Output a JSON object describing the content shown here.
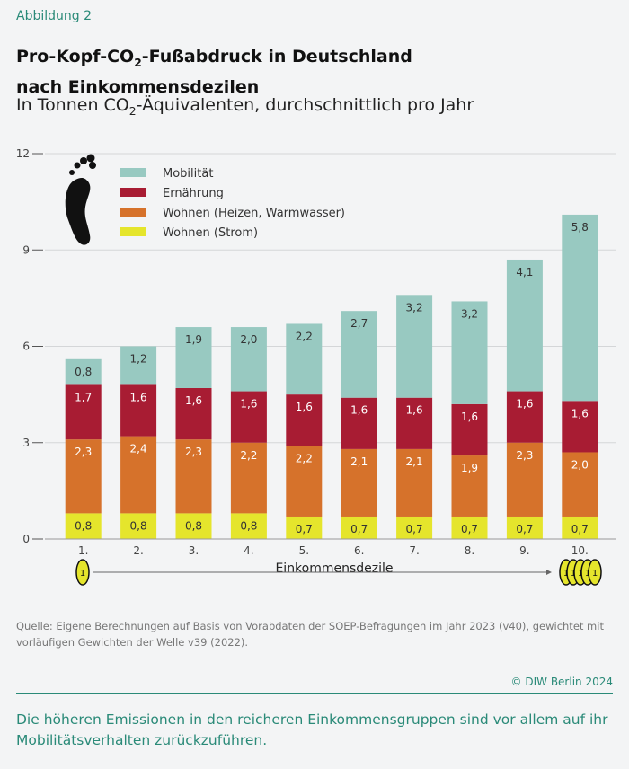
{
  "figure_label": "Abbildung 2",
  "title_line1": "Pro-Kopf-CO",
  "title_sub": "2",
  "title_line1_rest": "-Fußabdruck in Deutschland",
  "title_line2": "nach Einkommensdezilen",
  "subtitle_pre": "In Tonnen CO",
  "subtitle_sub": "2",
  "subtitle_post": "-Äquivalenten, durchschnittlich pro Jahr",
  "source": "Quelle: Eigene Berechnungen auf Basis von Vorabdaten der SOEP-Befragungen im Jahr 2023 (v40), gewichtet mit vorläufigen Gewichten der Welle v39 (2022).",
  "copyright": "© DIW Berlin 2024",
  "note": "Die höheren Emissionen in den reicheren Einkommensgruppen sind vor allem auf ihr Mobilitätsverhalten zurückzuführen.",
  "coin_label": "1",
  "chart_data": {
    "type": "bar",
    "stacked": true,
    "xlabel": "Einkommensdezile",
    "ylabel": "",
    "ylim": [
      0,
      12
    ],
    "yticks": [
      0,
      3,
      6,
      9,
      12
    ],
    "ytick_labels": [
      "0",
      "3",
      "6",
      "9",
      "12"
    ],
    "categories": [
      "1.",
      "2.",
      "3.",
      "4.",
      "5.",
      "6.",
      "7.",
      "8.",
      "9.",
      "10."
    ],
    "legend_position": "top-left",
    "series": [
      {
        "name": "Wohnen (Strom)",
        "color": "#e5e52c",
        "values": [
          0.8,
          0.8,
          0.8,
          0.8,
          0.7,
          0.7,
          0.7,
          0.7,
          0.7,
          0.7
        ],
        "labels": [
          "0,8",
          "0,8",
          "0,8",
          "0,8",
          "0,7",
          "0,7",
          "0,7",
          "0,7",
          "0,7",
          "0,7"
        ],
        "label_color": "#333333"
      },
      {
        "name": "Wohnen (Heizen, Warmwasser)",
        "color": "#d6722b",
        "values": [
          2.3,
          2.4,
          2.3,
          2.2,
          2.2,
          2.1,
          2.1,
          1.9,
          2.3,
          2.0
        ],
        "labels": [
          "2,3",
          "2,4",
          "2,3",
          "2,2",
          "2,2",
          "2,1",
          "2,1",
          "1,9",
          "2,3",
          "2,0"
        ],
        "label_color": "#ffffff"
      },
      {
        "name": "Ernährung",
        "color": "#a81c33",
        "values": [
          1.7,
          1.6,
          1.6,
          1.6,
          1.6,
          1.6,
          1.6,
          1.6,
          1.6,
          1.6
        ],
        "labels": [
          "1,7",
          "1,6",
          "1,6",
          "1,6",
          "1,6",
          "1,6",
          "1,6",
          "1,6",
          "1,6",
          "1,6"
        ],
        "label_color": "#ffffff"
      },
      {
        "name": "Mobilität",
        "color": "#98c9c1",
        "values": [
          0.8,
          1.2,
          1.9,
          2.0,
          2.2,
          2.7,
          3.2,
          3.2,
          4.1,
          5.8
        ],
        "labels": [
          "0,8",
          "1,2",
          "1,9",
          "2,0",
          "2,2",
          "2,7",
          "3,2",
          "3,2",
          "4,1",
          "5,8"
        ],
        "label_color": "#333333"
      }
    ]
  }
}
